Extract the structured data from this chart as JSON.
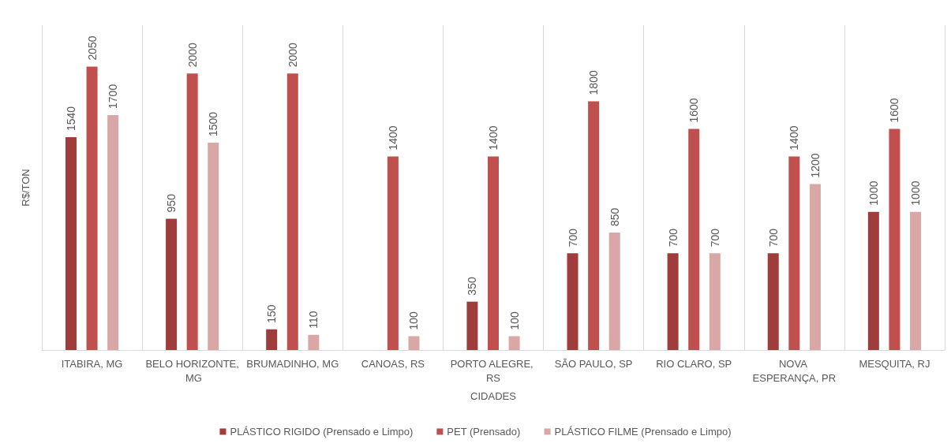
{
  "chart_data": {
    "type": "bar",
    "xlabel": "CIDADES",
    "ylabel": "R$/TON",
    "categories": [
      "ITABIRA, MG",
      "BELO HORIZONTE, MG",
      "BRUMADINHO, MG",
      "CANOAS, RS",
      "PORTO ALEGRE, RS",
      "SÃO PAULO, SP",
      "RIO CLARO, SP",
      "NOVA ESPERANÇA, PR",
      "MESQUITA, RJ"
    ],
    "series": [
      {
        "name": "PLÁSTICO RIGIDO (Prensado e Limpo)",
        "color": "#9e3d3b",
        "values": [
          1540,
          950,
          150,
          null,
          350,
          700,
          700,
          700,
          1000
        ]
      },
      {
        "name": "PET (Prensado)",
        "color": "#c0504d",
        "values": [
          2050,
          2000,
          2000,
          1400,
          1400,
          1800,
          1600,
          1400,
          1600
        ]
      },
      {
        "name": "PLÁSTICO FILME (Prensado e Limpo)",
        "color": "#d9a7a6",
        "values": [
          1700,
          1500,
          110,
          100,
          100,
          850,
          700,
          1200,
          1000
        ]
      }
    ],
    "data_labels": true,
    "grid": "x",
    "legend": "bottom",
    "tick_labels": "x"
  }
}
